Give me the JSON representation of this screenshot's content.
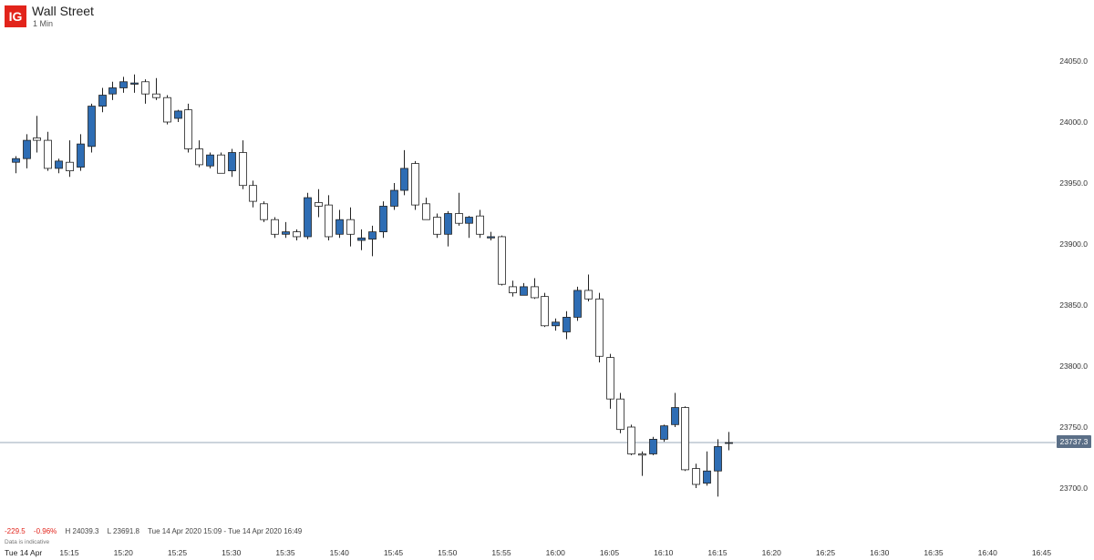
{
  "header": {
    "logo_text": "IG",
    "title": "Wall Street",
    "interval": "1 Min"
  },
  "footer": {
    "change": "-229.5",
    "change_pct": "-0.96%",
    "high": "H 24039.3",
    "low": "L 23691.8",
    "range": "Tue 14 Apr 2020 15:09 - Tue 14 Apr 2020 16:49",
    "note": "Data is indicative",
    "date": "Tue 14 Apr"
  },
  "colors": {
    "up": "#2e6db4",
    "down": "#ffffff",
    "outline": "#222222",
    "logo": "#e2241b",
    "price_tag": "#5b6f87"
  },
  "chart_data": {
    "type": "candlestick",
    "instrument": "Wall Street",
    "interval": "1 Min",
    "current_price": "23737.3",
    "ylim": [
      23680,
      24080
    ],
    "y_ticks": [
      "24050.0",
      "24000.0",
      "23950.0",
      "23900.0",
      "23850.0",
      "23800.0",
      "23750.0",
      "23700.0"
    ],
    "x_ticks": [
      "15:15",
      "15:20",
      "15:25",
      "15:30",
      "15:35",
      "15:40",
      "15:45",
      "15:50",
      "15:55",
      "16:00",
      "16:05",
      "16:10",
      "16:15",
      "16:20",
      "16:25",
      "16:30",
      "16:35",
      "16:40",
      "16:45"
    ],
    "x_tick_start": "15:15",
    "x_tick_step_minutes": 5,
    "time_start": "15:10",
    "candles": [
      {
        "time": "15:10",
        "open": 23967,
        "high": 23972,
        "low": 23958,
        "close": 23970
      },
      {
        "time": "15:11",
        "open": 23970,
        "high": 23990,
        "low": 23962,
        "close": 23985
      },
      {
        "time": "15:12",
        "open": 23987,
        "high": 24005,
        "low": 23975,
        "close": 23985
      },
      {
        "time": "15:13",
        "open": 23985,
        "high": 23992,
        "low": 23960,
        "close": 23962
      },
      {
        "time": "15:14",
        "open": 23962,
        "high": 23970,
        "low": 23958,
        "close": 23968
      },
      {
        "time": "15:15",
        "open": 23967,
        "high": 23985,
        "low": 23955,
        "close": 23960
      },
      {
        "time": "15:16",
        "open": 23963,
        "high": 23990,
        "low": 23960,
        "close": 23982
      },
      {
        "time": "15:17",
        "open": 23980,
        "high": 24015,
        "low": 23975,
        "close": 24013
      },
      {
        "time": "15:18",
        "open": 24013,
        "high": 24028,
        "low": 24008,
        "close": 24022
      },
      {
        "time": "15:19",
        "open": 24023,
        "high": 24033,
        "low": 24018,
        "close": 24028
      },
      {
        "time": "15:20",
        "open": 24028,
        "high": 24037,
        "low": 24024,
        "close": 24033
      },
      {
        "time": "15:21",
        "open": 24031,
        "high": 24039,
        "low": 24024,
        "close": 24032
      },
      {
        "time": "15:22",
        "open": 24033,
        "high": 24035,
        "low": 24015,
        "close": 24023
      },
      {
        "time": "15:23",
        "open": 24023,
        "high": 24036,
        "low": 24018,
        "close": 24020
      },
      {
        "time": "15:24",
        "open": 24020,
        "high": 24022,
        "low": 23998,
        "close": 24000
      },
      {
        "time": "15:25",
        "open": 24003,
        "high": 24010,
        "low": 24000,
        "close": 24009
      },
      {
        "time": "15:26",
        "open": 24010,
        "high": 24015,
        "low": 23975,
        "close": 23978
      },
      {
        "time": "15:27",
        "open": 23978,
        "high": 23985,
        "low": 23963,
        "close": 23965
      },
      {
        "time": "15:28",
        "open": 23964,
        "high": 23975,
        "low": 23962,
        "close": 23973
      },
      {
        "time": "15:29",
        "open": 23973,
        "high": 23975,
        "low": 23958,
        "close": 23958
      },
      {
        "time": "15:30",
        "open": 23960,
        "high": 23978,
        "low": 23955,
        "close": 23975
      },
      {
        "time": "15:31",
        "open": 23975,
        "high": 23985,
        "low": 23945,
        "close": 23948
      },
      {
        "time": "15:32",
        "open": 23948,
        "high": 23952,
        "low": 23930,
        "close": 23935
      },
      {
        "time": "15:33",
        "open": 23933,
        "high": 23935,
        "low": 23918,
        "close": 23920
      },
      {
        "time": "15:34",
        "open": 23920,
        "high": 23922,
        "low": 23905,
        "close": 23908
      },
      {
        "time": "15:35",
        "open": 23908,
        "high": 23918,
        "low": 23905,
        "close": 23910
      },
      {
        "time": "15:36",
        "open": 23910,
        "high": 23912,
        "low": 23903,
        "close": 23906
      },
      {
        "time": "15:37",
        "open": 23906,
        "high": 23942,
        "low": 23904,
        "close": 23938
      },
      {
        "time": "15:38",
        "open": 23934,
        "high": 23945,
        "low": 23922,
        "close": 23931
      },
      {
        "time": "15:39",
        "open": 23932,
        "high": 23940,
        "low": 23903,
        "close": 23906
      },
      {
        "time": "15:40",
        "open": 23908,
        "high": 23928,
        "low": 23905,
        "close": 23920
      },
      {
        "time": "15:41",
        "open": 23920,
        "high": 23930,
        "low": 23898,
        "close": 23908
      },
      {
        "time": "15:42",
        "open": 23903,
        "high": 23912,
        "low": 23895,
        "close": 23905
      },
      {
        "time": "15:43",
        "open": 23904,
        "high": 23915,
        "low": 23890,
        "close": 23910
      },
      {
        "time": "15:44",
        "open": 23910,
        "high": 23935,
        "low": 23905,
        "close": 23931
      },
      {
        "time": "15:45",
        "open": 23931,
        "high": 23950,
        "low": 23928,
        "close": 23944
      },
      {
        "time": "15:46",
        "open": 23944,
        "high": 23977,
        "low": 23940,
        "close": 23962
      },
      {
        "time": "15:47",
        "open": 23966,
        "high": 23968,
        "low": 23928,
        "close": 23932
      },
      {
        "time": "15:48",
        "open": 23933,
        "high": 23938,
        "low": 23920,
        "close": 23920
      },
      {
        "time": "15:49",
        "open": 23922,
        "high": 23925,
        "low": 23905,
        "close": 23908
      },
      {
        "time": "15:50",
        "open": 23908,
        "high": 23927,
        "low": 23898,
        "close": 23925
      },
      {
        "time": "15:51",
        "open": 23925,
        "high": 23942,
        "low": 23915,
        "close": 23917
      },
      {
        "time": "15:52",
        "open": 23917,
        "high": 23923,
        "low": 23905,
        "close": 23922
      },
      {
        "time": "15:53",
        "open": 23923,
        "high": 23928,
        "low": 23905,
        "close": 23908
      },
      {
        "time": "15:54",
        "open": 23905,
        "high": 23910,
        "low": 23903,
        "close": 23906
      },
      {
        "time": "15:55",
        "open": 23906,
        "high": 23907,
        "low": 23866,
        "close": 23867
      },
      {
        "time": "15:56",
        "open": 23865,
        "high": 23870,
        "low": 23857,
        "close": 23860
      },
      {
        "time": "15:57",
        "open": 23858,
        "high": 23868,
        "low": 23858,
        "close": 23865
      },
      {
        "time": "15:58",
        "open": 23865,
        "high": 23872,
        "low": 23855,
        "close": 23856
      },
      {
        "time": "15:59",
        "open": 23857,
        "high": 23860,
        "low": 23832,
        "close": 23833
      },
      {
        "time": "16:00",
        "open": 23833,
        "high": 23839,
        "low": 23829,
        "close": 23836
      },
      {
        "time": "16:01",
        "open": 23828,
        "high": 23845,
        "low": 23822,
        "close": 23840
      },
      {
        "time": "16:02",
        "open": 23840,
        "high": 23865,
        "low": 23837,
        "close": 23862
      },
      {
        "time": "16:03",
        "open": 23862,
        "high": 23875,
        "low": 23853,
        "close": 23855
      },
      {
        "time": "16:04",
        "open": 23855,
        "high": 23860,
        "low": 23803,
        "close": 23808
      },
      {
        "time": "16:05",
        "open": 23807,
        "high": 23810,
        "low": 23765,
        "close": 23773
      },
      {
        "time": "16:06",
        "open": 23773,
        "high": 23778,
        "low": 23745,
        "close": 23748
      },
      {
        "time": "16:07",
        "open": 23750,
        "high": 23752,
        "low": 23727,
        "close": 23728
      },
      {
        "time": "16:08",
        "open": 23728,
        "high": 23730,
        "low": 23710,
        "close": 23727
      },
      {
        "time": "16:09",
        "open": 23728,
        "high": 23742,
        "low": 23727,
        "close": 23740
      },
      {
        "time": "16:10",
        "open": 23740,
        "high": 23752,
        "low": 23738,
        "close": 23751
      },
      {
        "time": "16:11",
        "open": 23752,
        "high": 23778,
        "low": 23750,
        "close": 23766
      },
      {
        "time": "16:12",
        "open": 23766,
        "high": 23767,
        "low": 23714,
        "close": 23715
      },
      {
        "time": "16:13",
        "open": 23716,
        "high": 23720,
        "low": 23700,
        "close": 23703
      },
      {
        "time": "16:14",
        "open": 23704,
        "high": 23730,
        "low": 23702,
        "close": 23714
      },
      {
        "time": "16:15",
        "open": 23714,
        "high": 23740,
        "low": 23693,
        "close": 23734
      },
      {
        "time": "16:16",
        "open": 23737,
        "high": 23746,
        "low": 23731,
        "close": 23737.3
      }
    ]
  }
}
